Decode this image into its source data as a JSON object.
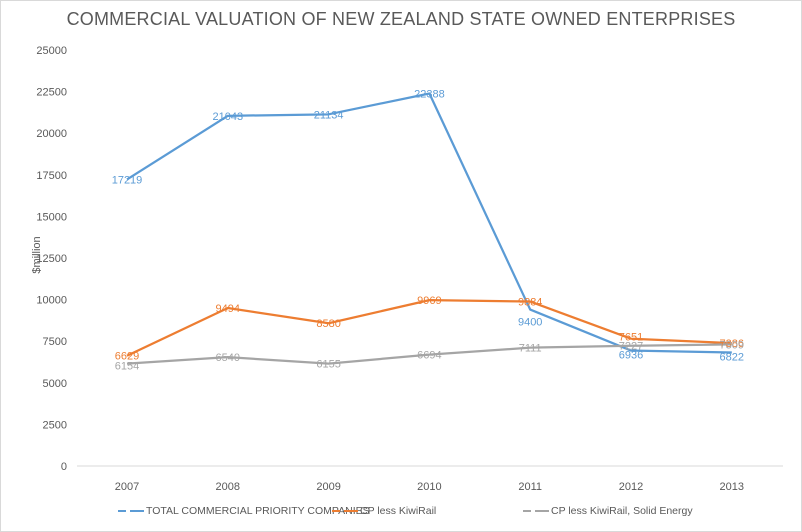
{
  "chart_data": {
    "type": "line",
    "title": "COMMERCIAL VALUATION OF NEW ZEALAND STATE OWNED ENTERPRISES",
    "xlabel": "",
    "ylabel": "$million",
    "categories": [
      "2007",
      "2008",
      "2009",
      "2010",
      "2011",
      "2012",
      "2013"
    ],
    "ylim": [
      0,
      25000
    ],
    "yticks": [
      0,
      2500,
      5000,
      7500,
      10000,
      12500,
      15000,
      17500,
      20000,
      22500,
      25000
    ],
    "grid": false,
    "legend_position": "bottom",
    "series": [
      {
        "name": "TOTAL COMMERCIAL PRIORITY COMPANIES",
        "color": "#5b9bd5",
        "values": [
          17219,
          21043,
          21134,
          22388,
          9400,
          6936,
          6822
        ]
      },
      {
        "name": "CP less KiwiRail",
        "color": "#ed7d31",
        "values": [
          6629,
          9494,
          8580,
          9969,
          9884,
          7651,
          7386
        ]
      },
      {
        "name": "CP less KiwiRail, Solid Energy",
        "color": "#a5a5a5",
        "values": [
          6154,
          6540,
          6155,
          6694,
          7111,
          7227,
          7309
        ]
      }
    ]
  }
}
